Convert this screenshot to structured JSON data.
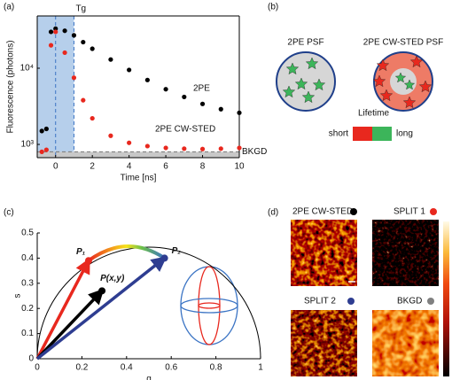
{
  "figure": {
    "panel_labels": [
      "(a)",
      "(b)",
      "(c)",
      "(d)"
    ]
  },
  "chart_data": [
    {
      "type": "scatter",
      "log_y": true,
      "xlabel": "Time [ns]",
      "ylabel": "Fluorescence (photons)",
      "xlim": [
        -1,
        10
      ],
      "ylim": [
        670,
        48500
      ],
      "xticks": [
        0,
        2,
        4,
        6,
        8,
        10
      ],
      "yticks": [
        {
          "value": 1000,
          "label": "10³"
        },
        {
          "value": 10000,
          "label": "10⁴"
        }
      ],
      "x": [
        -0.75,
        -0.5,
        -0.25,
        0,
        0.5,
        1,
        1.5,
        2,
        3,
        4,
        5,
        6,
        7,
        8,
        9,
        10
      ],
      "series": [
        {
          "name": "2PE",
          "color": "#000000",
          "values": [
            1500,
            1600,
            30000,
            33000,
            31000,
            27000,
            22000,
            18000,
            13000,
            9500,
            7000,
            5300,
            4200,
            3400,
            2900,
            2600
          ]
        },
        {
          "name": "2PE CW-STED",
          "color": "#e8281e",
          "values": [
            800,
            850,
            20000,
            30000,
            16000,
            7500,
            3800,
            2200,
            1300,
            1050,
            950,
            900,
            880,
            870,
            880,
            900
          ]
        }
      ],
      "shaded_x": [
        -1,
        1
      ],
      "shade_color": "#a9c7e8",
      "annotations": [
        {
          "text": "Tg",
          "x": 1
        },
        {
          "text": "BKGD",
          "y": 800
        }
      ]
    },
    {
      "type": "scatter",
      "xlabel": "g",
      "ylabel": "s",
      "xlim": [
        0,
        1
      ],
      "ylim": [
        0,
        0.5
      ],
      "xticks": [
        0,
        0.2,
        0.4,
        0.6,
        0.8,
        1
      ],
      "yticks": [
        0,
        0.1,
        0.2,
        0.3,
        0.4,
        0.5
      ],
      "universal_circle": true,
      "arrows": true,
      "series": [
        {
          "name": "P₁",
          "color": "#e8281e",
          "x": [
            0.23
          ],
          "values": [
            0.39
          ]
        },
        {
          "name": "P(x,y)",
          "color": "#000000",
          "x": [
            0.29
          ],
          "values": [
            0.27
          ]
        },
        {
          "name": "P₂",
          "color": "#2e3d91",
          "x": [
            0.57
          ],
          "values": [
            0.4
          ]
        }
      ]
    }
  ],
  "psf_diagram": {
    "titles": [
      "2PE PSF",
      "2PE CW-STED PSF"
    ],
    "legend_title": "Lifetime",
    "short": "short",
    "long": "long",
    "short_color": "#e8281e",
    "long_color": "#3cb55a"
  },
  "images": {
    "tiles": [
      {
        "label": "2PE CW-STED",
        "dot": "#000000"
      },
      {
        "label": "SPLIT 1",
        "dot": "#e8281e"
      },
      {
        "label": "SPLIT 2",
        "dot": "#2e3d91"
      },
      {
        "label": "BKGD",
        "dot": "#808080"
      }
    ]
  }
}
